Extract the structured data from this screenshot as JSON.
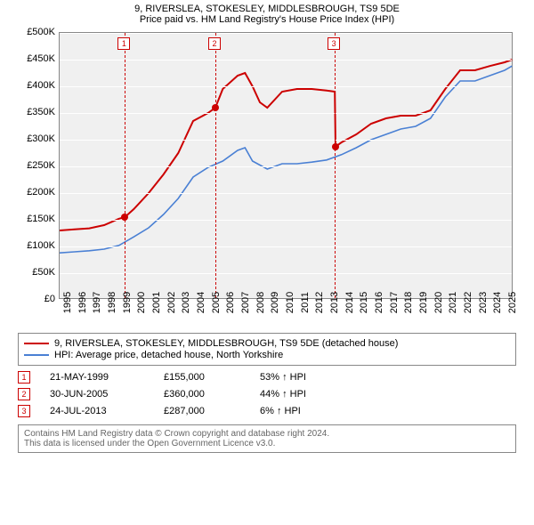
{
  "title": {
    "line1": "9, RIVERSLEA, STOKESLEY, MIDDLESBROUGH, TS9 5DE",
    "line2": "Price paid vs. HM Land Registry's House Price Index (HPI)"
  },
  "chart": {
    "type": "line",
    "background_color": "#f0f0f0",
    "grid_color": "#ffffff",
    "border_color": "#888888",
    "xlim": [
      1995,
      2025.6
    ],
    "ylim": [
      0,
      500000
    ],
    "ytick_step": 50000,
    "yticks": [
      "£0",
      "£50K",
      "£100K",
      "£150K",
      "£200K",
      "£250K",
      "£300K",
      "£350K",
      "£400K",
      "£450K",
      "£500K"
    ],
    "xticks": [
      1995,
      1996,
      1997,
      1998,
      1999,
      2000,
      2001,
      2002,
      2003,
      2004,
      2005,
      2006,
      2007,
      2008,
      2009,
      2010,
      2011,
      2012,
      2013,
      2014,
      2015,
      2016,
      2017,
      2018,
      2019,
      2020,
      2021,
      2022,
      2023,
      2024,
      2025
    ],
    "label_fontsize": 11,
    "series": [
      {
        "name": "price_paid",
        "color": "#cc0000",
        "line_width": 2,
        "x": [
          1995,
          1996,
          1997,
          1998,
          1999,
          1999.4,
          2000,
          2001,
          2002,
          2003,
          2004,
          2005,
          2005.5,
          2006,
          2007,
          2007.5,
          2008,
          2008.5,
          2009,
          2010,
          2011,
          2012,
          2013,
          2013.55,
          2013.6,
          2014,
          2015,
          2016,
          2017,
          2018,
          2019,
          2020,
          2021,
          2022,
          2023,
          2024,
          2025,
          2025.5
        ],
        "y": [
          130000,
          132000,
          134000,
          140000,
          152000,
          155000,
          170000,
          200000,
          235000,
          275000,
          335000,
          350000,
          360000,
          395000,
          420000,
          425000,
          400000,
          370000,
          360000,
          390000,
          395000,
          395000,
          392000,
          390000,
          287000,
          295000,
          310000,
          330000,
          340000,
          345000,
          345000,
          355000,
          395000,
          430000,
          430000,
          438000,
          445000,
          450000
        ]
      },
      {
        "name": "hpi",
        "color": "#4a80d4",
        "line_width": 1.6,
        "x": [
          1995,
          1996,
          1997,
          1998,
          1999,
          2000,
          2001,
          2002,
          2003,
          2004,
          2005,
          2006,
          2007,
          2007.5,
          2008,
          2009,
          2010,
          2011,
          2012,
          2013,
          2014,
          2015,
          2016,
          2017,
          2018,
          2019,
          2020,
          2021,
          2022,
          2023,
          2024,
          2025,
          2025.5
        ],
        "y": [
          88000,
          90000,
          92000,
          95000,
          102000,
          118000,
          135000,
          160000,
          190000,
          230000,
          248000,
          260000,
          280000,
          285000,
          260000,
          245000,
          255000,
          255000,
          258000,
          262000,
          272000,
          285000,
          300000,
          310000,
          320000,
          325000,
          340000,
          380000,
          410000,
          410000,
          420000,
          430000,
          438000
        ]
      }
    ],
    "vlines": [
      {
        "x": 1999.4,
        "label": "1"
      },
      {
        "x": 2005.5,
        "label": "2"
      },
      {
        "x": 2013.55,
        "label": "3"
      }
    ],
    "data_markers": [
      {
        "x": 1999.4,
        "y": 155000
      },
      {
        "x": 2005.5,
        "y": 360000
      },
      {
        "x": 2013.6,
        "y": 287000
      }
    ],
    "marker_box_color": "#cc0000"
  },
  "legend": {
    "items": [
      {
        "color": "#cc0000",
        "label": "9, RIVERSLEA, STOKESLEY, MIDDLESBROUGH, TS9 5DE (detached house)"
      },
      {
        "color": "#4a80d4",
        "label": "HPI: Average price, detached house, North Yorkshire"
      }
    ]
  },
  "transactions": [
    {
      "n": "1",
      "date": "21-MAY-1999",
      "price": "£155,000",
      "pct": "53% ↑ HPI"
    },
    {
      "n": "2",
      "date": "30-JUN-2005",
      "price": "£360,000",
      "pct": "44% ↑ HPI"
    },
    {
      "n": "3",
      "date": "24-JUL-2013",
      "price": "£287,000",
      "pct": "6% ↑ HPI"
    }
  ],
  "footer": {
    "line1": "Contains HM Land Registry data © Crown copyright and database right 2024.",
    "line2": "This data is licensed under the Open Government Licence v3.0."
  }
}
